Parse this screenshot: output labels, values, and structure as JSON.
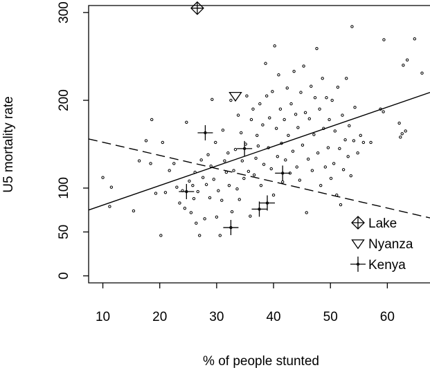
{
  "chart_data": {
    "type": "scatter",
    "xlabel": "% of people stunted",
    "ylabel": "U5 mortality rate",
    "xlim": [
      7.5,
      67.5
    ],
    "ylim": [
      -8,
      308
    ],
    "x_ticks": [
      "10",
      "20",
      "30",
      "40",
      "50",
      "60"
    ],
    "x_tick_values": [
      10,
      20,
      30,
      40,
      50,
      60
    ],
    "y_ticks": [
      "0",
      "50",
      "100",
      "200",
      "300"
    ],
    "y_tick_values": [
      0,
      50,
      100,
      200,
      300
    ],
    "grid": false,
    "legend_position": "bottom-right",
    "legend": [
      {
        "label": "Lake",
        "symbol": "diamond-plus"
      },
      {
        "label": "Nyanza",
        "symbol": "triangle-down"
      },
      {
        "label": "Kenya",
        "symbol": "plus"
      }
    ],
    "lines": [
      {
        "style": "solid",
        "x": [
          7.5,
          67.5
        ],
        "y": [
          75,
          209
        ]
      },
      {
        "style": "dashed",
        "x": [
          7.5,
          67.5
        ],
        "y": [
          156,
          66
        ]
      }
    ],
    "series": [
      {
        "name": "Lake",
        "points": [
          [
            26.6,
            305
          ]
        ]
      },
      {
        "name": "Nyanza",
        "points": [
          [
            33.3,
            205
          ]
        ]
      },
      {
        "name": "Kenya",
        "points": [
          [
            28,
            163
          ],
          [
            34.9,
            145
          ],
          [
            24.7,
            96
          ],
          [
            38.9,
            83
          ],
          [
            37.5,
            76
          ],
          [
            32.5,
            55
          ],
          [
            41.6,
            117
          ]
        ]
      },
      {
        "name": "",
        "points": [
          [
            10,
            112
          ],
          [
            11.2,
            79
          ],
          [
            11.5,
            101
          ],
          [
            15.4,
            74
          ],
          [
            16.4,
            131
          ],
          [
            17.6,
            154
          ],
          [
            18.4,
            128
          ],
          [
            18.6,
            178
          ],
          [
            19.3,
            94
          ],
          [
            20.2,
            46
          ],
          [
            20.5,
            152
          ],
          [
            21,
            95
          ],
          [
            21.7,
            120
          ],
          [
            22.5,
            128
          ],
          [
            23,
            101
          ],
          [
            23.5,
            83
          ],
          [
            24,
            97
          ],
          [
            24.4,
            77
          ],
          [
            24.7,
            175
          ],
          [
            25.2,
            108
          ],
          [
            25.5,
            72
          ],
          [
            25.8,
            103
          ],
          [
            26,
            88
          ],
          [
            26.2,
            118
          ],
          [
            26.4,
            60
          ],
          [
            26.7,
            96
          ],
          [
            27,
            46
          ],
          [
            27.3,
            132
          ],
          [
            27.6,
            112
          ],
          [
            27.9,
            65
          ],
          [
            28.2,
            104
          ],
          [
            28.5,
            138
          ],
          [
            28.8,
            89
          ],
          [
            29,
            125
          ],
          [
            29.2,
            201
          ],
          [
            29.5,
            110
          ],
          [
            29.8,
            152
          ],
          [
            30,
            67
          ],
          [
            30.3,
            97
          ],
          [
            30.6,
            46
          ],
          [
            30.9,
            86
          ],
          [
            31.1,
            166
          ],
          [
            31.4,
            131
          ],
          [
            31.7,
            118
          ],
          [
            32,
            140
          ],
          [
            32.2,
            103
          ],
          [
            32.5,
            200
          ],
          [
            32.7,
            73
          ],
          [
            33,
            120
          ],
          [
            33.3,
            144
          ],
          [
            33.6,
            99
          ],
          [
            33.8,
            183
          ],
          [
            34,
            87
          ],
          [
            34.3,
            163
          ],
          [
            34.5,
            131
          ],
          [
            34.8,
            111
          ],
          [
            35.1,
            150
          ],
          [
            35.3,
            205
          ],
          [
            35.6,
            119
          ],
          [
            35.9,
            68
          ],
          [
            36.1,
            178
          ],
          [
            36.4,
            190
          ],
          [
            36.6,
            115
          ],
          [
            36.9,
            134
          ],
          [
            37.1,
            160
          ],
          [
            37.3,
            148
          ],
          [
            37.6,
            196
          ],
          [
            37.8,
            103
          ],
          [
            38.1,
            172
          ],
          [
            38.3,
            127
          ],
          [
            38.6,
            242
          ],
          [
            38.8,
            205
          ],
          [
            39.1,
            146
          ],
          [
            39.3,
            180
          ],
          [
            39.6,
            122
          ],
          [
            39.8,
            210
          ],
          [
            40,
            92
          ],
          [
            40.2,
            262
          ],
          [
            40.5,
            168
          ],
          [
            40.7,
            136
          ],
          [
            40.9,
            229
          ],
          [
            41.2,
            190
          ],
          [
            41.4,
            151
          ],
          [
            41.6,
            107
          ],
          [
            41.9,
            178
          ],
          [
            42.1,
            132
          ],
          [
            42.4,
            214
          ],
          [
            42.6,
            160
          ],
          [
            42.9,
            117
          ],
          [
            43.1,
            196
          ],
          [
            43.4,
            142
          ],
          [
            43.6,
            233
          ],
          [
            43.9,
            184
          ],
          [
            44.1,
            124
          ],
          [
            44.3,
            169
          ],
          [
            44.6,
            109
          ],
          [
            44.8,
            209
          ],
          [
            45.1,
            149
          ],
          [
            45.3,
            239
          ],
          [
            45.6,
            186
          ],
          [
            45.8,
            72
          ],
          [
            46.1,
            133
          ],
          [
            46.3,
            179
          ],
          [
            46.6,
            216
          ],
          [
            46.8,
            120
          ],
          [
            47.1,
            161
          ],
          [
            47.3,
            203
          ],
          [
            47.6,
            259
          ],
          [
            47.8,
            140
          ],
          [
            48.1,
            190
          ],
          [
            48.3,
            103
          ],
          [
            48.6,
            225
          ],
          [
            48.8,
            168
          ],
          [
            49.1,
            124
          ],
          [
            49.3,
            203
          ],
          [
            49.6,
            146
          ],
          [
            49.8,
            178
          ],
          [
            50.1,
            111
          ],
          [
            50.3,
            200
          ],
          [
            50.6,
            128
          ],
          [
            50.8,
            165
          ],
          [
            51.1,
            92
          ],
          [
            51.3,
            215
          ],
          [
            51.6,
            145
          ],
          [
            51.8,
            81
          ],
          [
            52.1,
            183
          ],
          [
            52.3,
            121
          ],
          [
            52.6,
            155
          ],
          [
            52.8,
            225
          ],
          [
            53.1,
            136
          ],
          [
            53.3,
            171
          ],
          [
            53.6,
            114
          ],
          [
            53.8,
            284
          ],
          [
            54.1,
            154
          ],
          [
            54.3,
            192
          ],
          [
            54.8,
            140
          ],
          [
            55.3,
            160
          ],
          [
            55.8,
            152
          ],
          [
            57.1,
            152
          ],
          [
            58.8,
            190
          ],
          [
            59.3,
            187
          ],
          [
            59.4,
            269
          ],
          [
            62.1,
            174
          ],
          [
            62.3,
            158
          ],
          [
            62.6,
            162
          ],
          [
            62.8,
            240
          ],
          [
            63.2,
            165
          ],
          [
            63.5,
            246
          ],
          [
            64.8,
            270
          ],
          [
            66.1,
            231
          ]
        ]
      }
    ]
  }
}
